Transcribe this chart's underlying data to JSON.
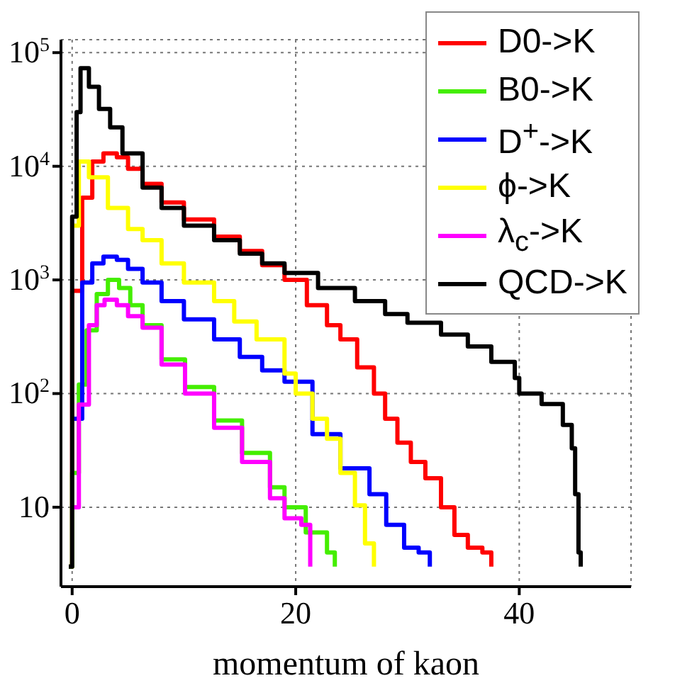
{
  "chart_data": {
    "type": "step",
    "xlabel": "momentum of kaon",
    "log": "y",
    "grid": true,
    "legend": "top right",
    "xlim": [
      -1,
      50
    ],
    "xticks": [
      0,
      20,
      40
    ],
    "ylim": [
      2,
      130000
    ],
    "yticks": [
      10,
      {
        "value": 100,
        "label": "10$^{2}$"
      },
      {
        "value": 1000,
        "label": "10$^{3}$"
      },
      {
        "value": 10000,
        "label": "10$^{4}$"
      },
      {
        "value": 100000,
        "label": "10$^{5}$"
      }
    ],
    "series": [
      {
        "name": "D0->K",
        "color": "#ff0000",
        "x": [
          -0.3,
          0,
          0.9,
          1.8,
          2.8,
          4,
          5,
          6.3,
          8,
          10,
          12.7,
          15,
          17,
          19,
          21,
          22.8,
          24,
          25.5,
          27,
          28,
          29.1,
          30.3,
          31.6,
          33,
          34.2,
          35.4,
          36.7,
          37.5
        ],
        "values": [
          3,
          800,
          5300,
          11000,
          13000,
          12000,
          9500,
          7000,
          4800,
          3400,
          2400,
          1800,
          1350,
          1000,
          600,
          400,
          300,
          170,
          100,
          60,
          37,
          25,
          18,
          10,
          5.7,
          4.4,
          4,
          3
        ]
      },
      {
        "name": "B0->K",
        "color": "#44ee00",
        "x": [
          -0.3,
          0,
          0.6,
          1.3,
          2.2,
          3.2,
          4.2,
          5.2,
          6.3,
          8,
          10.1,
          12.7,
          15.2,
          17.7,
          19,
          20.9,
          22.8,
          23.5
        ],
        "values": [
          3,
          20,
          120,
          360,
          750,
          1000,
          850,
          600,
          400,
          200,
          114,
          58,
          30,
          15,
          10,
          6,
          4,
          3
        ]
      },
      {
        "name": "D$^{+}$->K",
        "color": "#0000ff",
        "x": [
          0,
          0.9,
          1.8,
          2.8,
          4,
          5,
          6.3,
          8,
          10,
          12.7,
          15,
          17,
          19,
          21.5,
          24,
          26.6,
          28.1,
          29.7,
          31,
          32
        ],
        "values": [
          60,
          950,
          1400,
          1600,
          1500,
          1250,
          950,
          650,
          450,
          300,
          210,
          160,
          127,
          44,
          22,
          13,
          7,
          4.4,
          4,
          3
        ]
      },
      {
        "name": "ϕ->K",
        "color": "#ffff00",
        "x": [
          0,
          0.6,
          1.5,
          3.2,
          5,
          6.3,
          8,
          10,
          12.7,
          14.5,
          16.5,
          19,
          20,
          21.5,
          22.8,
          24,
          25.3,
          26.2,
          27
        ],
        "values": [
          3000,
          11000,
          8000,
          4300,
          2800,
          2240,
          1400,
          950,
          650,
          430,
          300,
          150,
          100,
          60,
          40,
          20,
          10.4,
          4.8,
          3
        ]
      },
      {
        "name": "λ$_{c}$->K",
        "color": "#ff00ff",
        "x": [
          0,
          0.6,
          1.5,
          2.2,
          2.9,
          4,
          5,
          6.3,
          8,
          10.1,
          12.7,
          15.2,
          17.7,
          19,
          20.5,
          21.3
        ],
        "values": [
          10,
          80,
          400,
          600,
          670,
          600,
          480,
          380,
          180,
          100,
          50,
          25,
          12,
          8,
          7,
          3
        ]
      },
      {
        "name": "QCD->K",
        "color": "#000000",
        "x": [
          -0.3,
          0,
          0.4,
          0.75,
          1.5,
          2.4,
          3.4,
          4.5,
          6.3,
          8,
          10,
          12.7,
          15,
          17,
          19,
          22,
          25.3,
          28,
          30,
          33,
          35.4,
          37.5,
          39.6,
          40,
          42,
          43.9,
          44.7,
          45,
          45.3,
          45.5
        ],
        "values": [
          3,
          3600,
          30000,
          73000,
          50000,
          32000,
          22000,
          13000,
          6500,
          4300,
          3000,
          2240,
          1700,
          1400,
          1150,
          850,
          650,
          500,
          420,
          330,
          260,
          190,
          137,
          100,
          81,
          53,
          33,
          13,
          4,
          3
        ]
      }
    ]
  }
}
